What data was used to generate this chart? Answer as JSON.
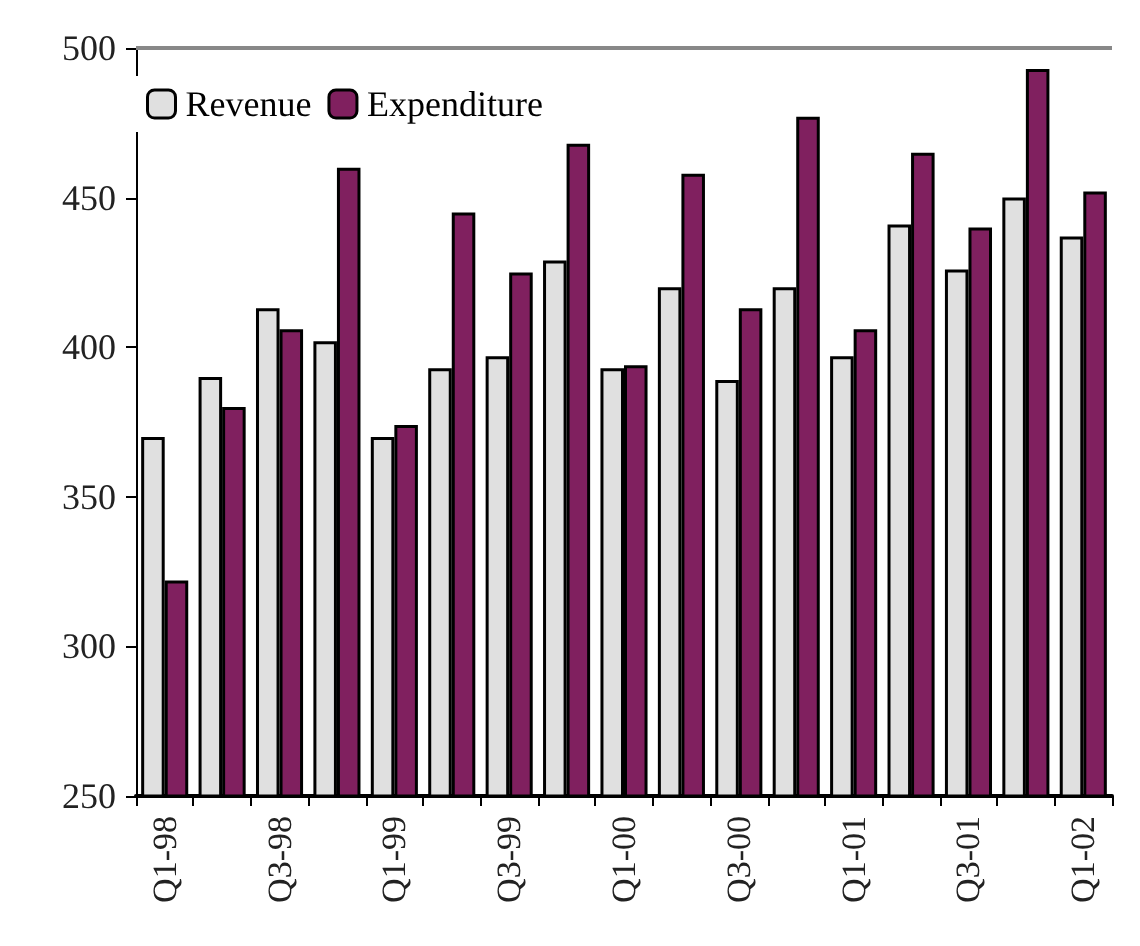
{
  "chart_data": {
    "type": "bar",
    "categories": [
      "Q1-98",
      null,
      "Q3-98",
      null,
      "Q1-99",
      null,
      "Q3-99",
      null,
      "Q1-00",
      null,
      "Q3-00",
      null,
      "Q1-01",
      null,
      "Q3-01",
      null,
      "Q1-02"
    ],
    "series": [
      {
        "name": "Revenue",
        "color": "#e0e0e0",
        "values": [
          370,
          390,
          413,
          402,
          370,
          393,
          397,
          429,
          393,
          420,
          389,
          420,
          397,
          441,
          426,
          450,
          437
        ]
      },
      {
        "name": "Expenditure",
        "color": "#80205f",
        "values": [
          322,
          380,
          406,
          460,
          374,
          445,
          425,
          468,
          394,
          458,
          413,
          477,
          406,
          465,
          440,
          493,
          452
        ]
      }
    ],
    "ylim": [
      250,
      500
    ],
    "yticks": [
      250,
      300,
      350,
      400,
      450,
      500
    ],
    "grid": false,
    "legend": "top left"
  }
}
